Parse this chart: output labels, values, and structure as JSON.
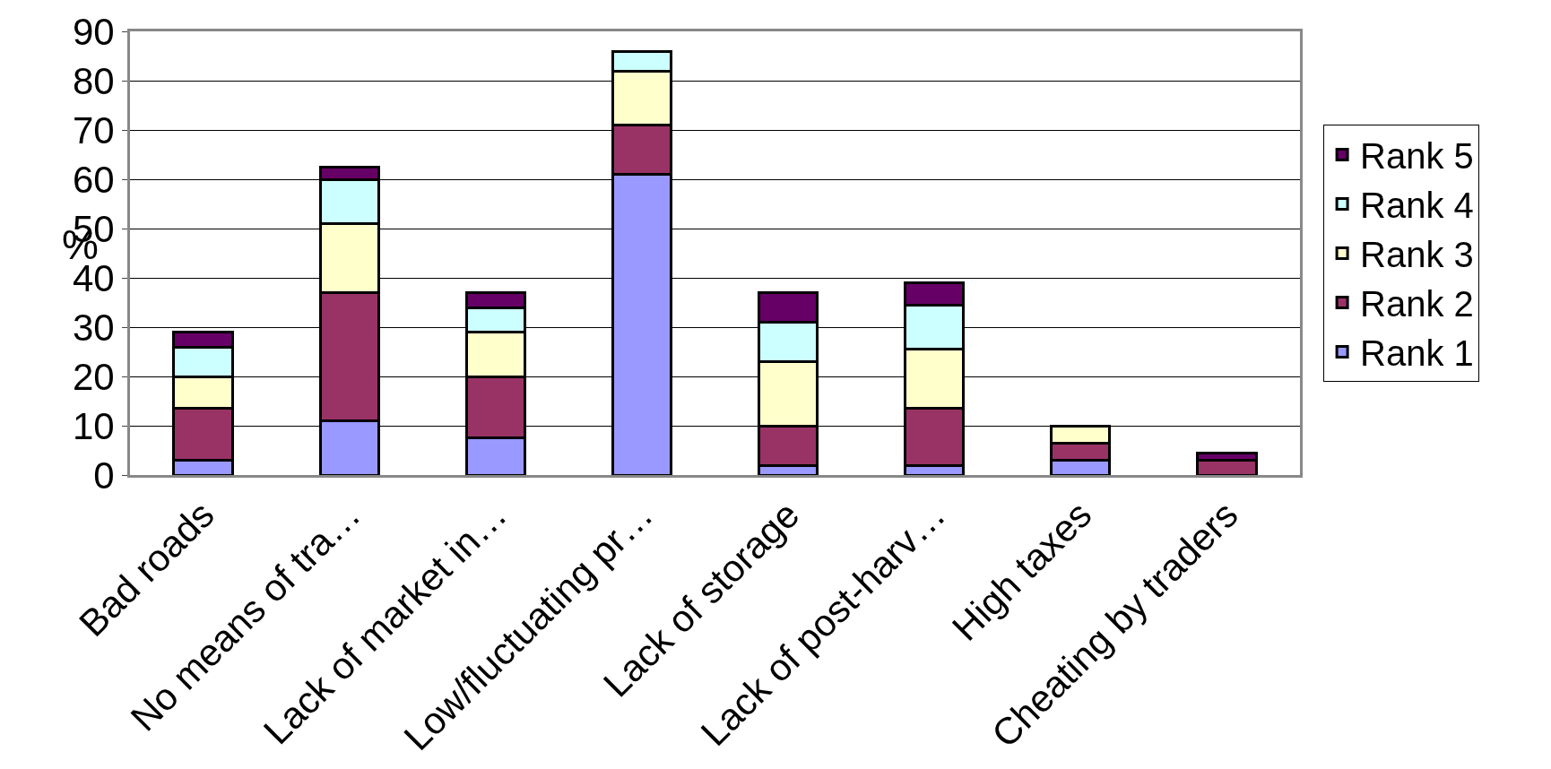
{
  "chart_data": {
    "type": "bar",
    "stacked": true,
    "ylabel": "%",
    "categories": [
      "Bad roads",
      "No means of tra…",
      "Lack of market in…",
      "Low/fluctuating pr…",
      "Lack of storage",
      "Lack of post-harv…",
      "High taxes",
      "Cheating by traders"
    ],
    "series": [
      {
        "name": "Rank 1",
        "color": "#9999ff",
        "values": [
          3,
          11,
          7.5,
          61,
          2,
          2,
          3,
          0
        ]
      },
      {
        "name": "Rank 2",
        "color": "#993366",
        "values": [
          10.5,
          26,
          12.5,
          10,
          8,
          11.5,
          3.5,
          3
        ]
      },
      {
        "name": "Rank 3",
        "color": "#ffffcc",
        "values": [
          6.5,
          14,
          9,
          11,
          13,
          12,
          3.5,
          0
        ]
      },
      {
        "name": "Rank 4",
        "color": "#ccffff",
        "values": [
          6,
          9,
          5,
          4,
          8,
          9,
          0,
          0
        ]
      },
      {
        "name": "Rank 5",
        "color": "#660066",
        "values": [
          3,
          2.5,
          3,
          0,
          6,
          4.5,
          0,
          1.5
        ]
      }
    ],
    "ylim": [
      0,
      90
    ],
    "yticks": [
      0,
      10,
      20,
      30,
      40,
      50,
      60,
      70,
      80,
      90
    ],
    "grid": "y",
    "legend": "right"
  }
}
